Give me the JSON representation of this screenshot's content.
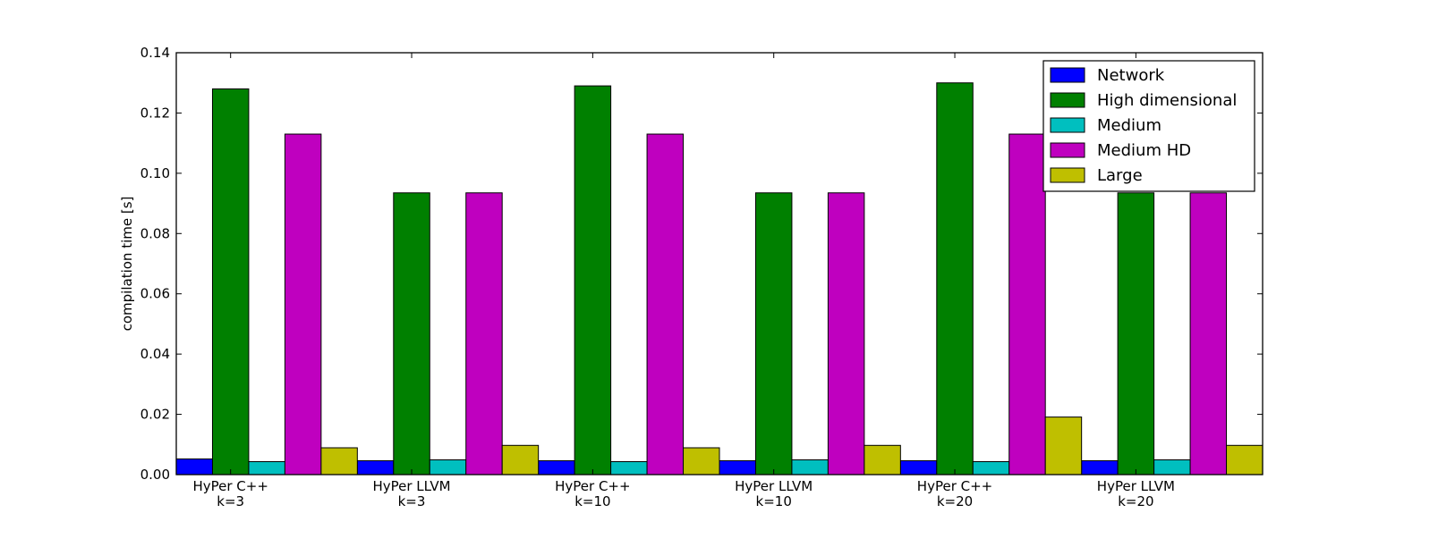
{
  "chart_data": {
    "type": "bar",
    "ylabel": "compilation time [s]",
    "ylim": [
      0,
      0.14
    ],
    "yticks": [
      "0.00",
      "0.02",
      "0.04",
      "0.06",
      "0.08",
      "0.10",
      "0.12",
      "0.14"
    ],
    "categories": [
      [
        "HyPer C++",
        "k=3"
      ],
      [
        "HyPer LLVM",
        "k=3"
      ],
      [
        "HyPer C++",
        "k=10"
      ],
      [
        "HyPer LLVM",
        "k=10"
      ],
      [
        "HyPer C++",
        "k=20"
      ],
      [
        "HyPer LLVM",
        "k=20"
      ]
    ],
    "series": [
      {
        "name": "Network",
        "color": "#0000ff",
        "values": [
          0.0052,
          0.0046,
          0.0046,
          0.0046,
          0.0046,
          0.0046
        ]
      },
      {
        "name": "High dimensional",
        "color": "#008000",
        "values": [
          0.128,
          0.0935,
          0.129,
          0.0935,
          0.13,
          0.0935
        ]
      },
      {
        "name": "Medium",
        "color": "#00bfbf",
        "values": [
          0.0043,
          0.0049,
          0.0043,
          0.0049,
          0.0043,
          0.0049
        ]
      },
      {
        "name": "Medium HD",
        "color": "#bf00bf",
        "values": [
          0.113,
          0.0935,
          0.113,
          0.0935,
          0.113,
          0.0935
        ]
      },
      {
        "name": "Large",
        "color": "#bfbf00",
        "values": [
          0.0089,
          0.0097,
          0.0089,
          0.0097,
          0.0191,
          0.0097
        ]
      }
    ],
    "legend_position": "top-right",
    "grid": false
  }
}
